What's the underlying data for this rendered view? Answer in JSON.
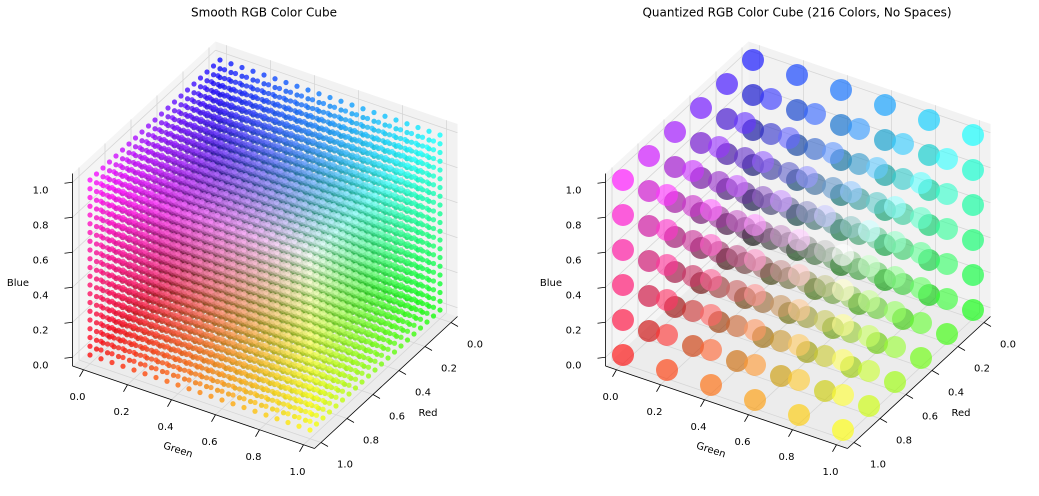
{
  "chart_data": [
    {
      "type": "scatter3d",
      "title": "Smooth RGB Color Cube",
      "xlabel": "Red",
      "ylabel": "Green",
      "zlabel": "Blue",
      "x": [
        0,
        0.05,
        0.1,
        0.15,
        0.2,
        0.25,
        0.3,
        0.35,
        0.4,
        0.45,
        0.5,
        0.55,
        0.6,
        0.65,
        0.7,
        0.75,
        0.8,
        0.85,
        0.9,
        0.95,
        1
      ],
      "y": [
        0,
        0.05,
        0.1,
        0.15,
        0.2,
        0.25,
        0.3,
        0.35,
        0.4,
        0.45,
        0.5,
        0.55,
        0.6,
        0.65,
        0.7,
        0.75,
        0.8,
        0.85,
        0.9,
        0.95,
        1
      ],
      "z": [
        0,
        0.05,
        0.1,
        0.15,
        0.2,
        0.25,
        0.3,
        0.35,
        0.4,
        0.45,
        0.5,
        0.55,
        0.6,
        0.65,
        0.7,
        0.75,
        0.8,
        0.85,
        0.9,
        0.95,
        1
      ],
      "xlim": [
        -0.05,
        1.05
      ],
      "ylim": [
        -0.05,
        1.05
      ],
      "zlim": [
        -0.05,
        1.05
      ],
      "xticks": [
        {
          "value": 0,
          "label": "0.0"
        },
        0.2,
        0.4,
        0.6,
        0.8,
        {
          "value": 1,
          "label": "1.0"
        }
      ],
      "yticks": [
        {
          "value": 0,
          "label": "0.0"
        },
        0.2,
        0.4,
        0.6,
        0.8,
        {
          "value": 1,
          "label": "1.0"
        }
      ],
      "zticks": [
        {
          "value": 0,
          "label": "0.0"
        },
        0.2,
        0.4,
        0.6,
        0.8,
        {
          "value": 1,
          "label": "1.0"
        }
      ],
      "grid": true
    },
    {
      "type": "scatter3d",
      "title": "Quantized RGB Color Cube (216 Colors, No Spaces)",
      "xlabel": "Red",
      "ylabel": "Green",
      "zlabel": "Blue",
      "x": [
        0,
        0.2,
        0.4,
        0.6,
        0.8,
        1
      ],
      "y": [
        0,
        0.2,
        0.4,
        0.6,
        0.8,
        1
      ],
      "z": [
        0,
        0.2,
        0.4,
        0.6,
        0.8,
        1
      ],
      "xlim": [
        -0.05,
        1.05
      ],
      "ylim": [
        -0.05,
        1.05
      ],
      "zlim": [
        -0.05,
        1.05
      ],
      "xticks": [
        {
          "value": 0,
          "label": "0.0"
        },
        0.2,
        0.4,
        0.6,
        0.8,
        {
          "value": 1,
          "label": "1.0"
        }
      ],
      "yticks": [
        {
          "value": 0,
          "label": "0.0"
        },
        0.2,
        0.4,
        0.6,
        0.8,
        {
          "value": 1,
          "label": "1.0"
        }
      ],
      "zticks": [
        {
          "value": 0,
          "label": "0.0"
        },
        0.2,
        0.4,
        0.6,
        0.8,
        {
          "value": 1,
          "label": "1.0"
        }
      ],
      "grid": true
    }
  ]
}
